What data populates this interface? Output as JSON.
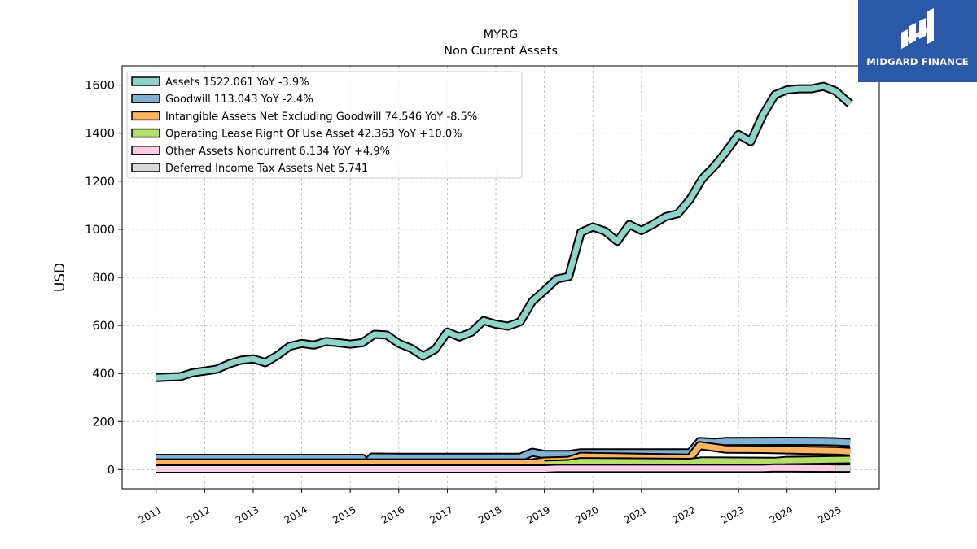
{
  "chart_data": {
    "type": "area",
    "title": "MYRG",
    "subtitle": "Non Current  Assets",
    "ylabel": "USD",
    "xlabel": "",
    "ylim": [
      -80,
      1680
    ],
    "xlim": [
      2010.3,
      2025.9
    ],
    "yticks": [
      0,
      200,
      400,
      600,
      800,
      1000,
      1200,
      1400,
      1600
    ],
    "xticks": [
      "2011",
      "2012",
      "2013",
      "2014",
      "2015",
      "2016",
      "2017",
      "2018",
      "2019",
      "2020",
      "2021",
      "2022",
      "2023",
      "2024",
      "2025"
    ],
    "grid": true,
    "legend_position": "top-left",
    "legend": [
      "Assets  1522.061 YoY -3.9%",
      "Goodwill  113.043 YoY -2.4%",
      "Intangible Assets Net Excluding Goodwill  74.546 YoY -8.5%",
      "Operating Lease Right Of Use Asset  42.363 YoY +10.0%",
      "Other Assets Noncurrent  6.134 YoY +4.9%",
      "Deferred Income Tax Assets Net  5.741"
    ],
    "series": [
      {
        "name": "Assets",
        "color": "#8dd3c7",
        "points": [
          [
            2011.0,
            383
          ],
          [
            2011.25,
            385
          ],
          [
            2011.5,
            387
          ],
          [
            2011.75,
            403
          ],
          [
            2012.0,
            410
          ],
          [
            2012.25,
            418
          ],
          [
            2012.5,
            440
          ],
          [
            2012.75,
            455
          ],
          [
            2013.0,
            461
          ],
          [
            2013.25,
            445
          ],
          [
            2013.5,
            475
          ],
          [
            2013.75,
            513
          ],
          [
            2014.0,
            525
          ],
          [
            2014.25,
            518
          ],
          [
            2014.5,
            533
          ],
          [
            2014.75,
            528
          ],
          [
            2015.0,
            522
          ],
          [
            2015.25,
            528
          ],
          [
            2015.5,
            563
          ],
          [
            2015.75,
            560
          ],
          [
            2016.0,
            525
          ],
          [
            2016.25,
            505
          ],
          [
            2016.5,
            472
          ],
          [
            2016.75,
            500
          ],
          [
            2017.0,
            573
          ],
          [
            2017.25,
            552
          ],
          [
            2017.5,
            572
          ],
          [
            2017.75,
            620
          ],
          [
            2018.0,
            605
          ],
          [
            2018.25,
            597
          ],
          [
            2018.5,
            615
          ],
          [
            2018.75,
            700
          ],
          [
            2019.0,
            745
          ],
          [
            2019.25,
            793
          ],
          [
            2019.5,
            803
          ],
          [
            2019.75,
            987
          ],
          [
            2020.0,
            1010
          ],
          [
            2020.25,
            992
          ],
          [
            2020.5,
            950
          ],
          [
            2020.75,
            1020
          ],
          [
            2021.0,
            995
          ],
          [
            2021.25,
            1022
          ],
          [
            2021.5,
            1053
          ],
          [
            2021.75,
            1065
          ],
          [
            2022.0,
            1125
          ],
          [
            2022.25,
            1210
          ],
          [
            2022.5,
            1262
          ],
          [
            2022.75,
            1325
          ],
          [
            2023.0,
            1395
          ],
          [
            2023.25,
            1365
          ],
          [
            2023.5,
            1475
          ],
          [
            2023.75,
            1560
          ],
          [
            2024.0,
            1580
          ],
          [
            2024.25,
            1585
          ],
          [
            2024.5,
            1585
          ],
          [
            2024.75,
            1595
          ],
          [
            2025.0,
            1575
          ],
          [
            2025.3,
            1522
          ]
        ]
      },
      {
        "name": "Goodwill",
        "color": "#80b1d3",
        "points": [
          [
            2011.0,
            47
          ],
          [
            2015.25,
            47
          ],
          [
            2015.3,
            20
          ],
          [
            2015.45,
            52
          ],
          [
            2016.0,
            51
          ],
          [
            2018.5,
            51
          ],
          [
            2018.75,
            72
          ],
          [
            2019.0,
            63
          ],
          [
            2019.5,
            63
          ],
          [
            2019.75,
            70
          ],
          [
            2022.0,
            70
          ],
          [
            2022.2,
            117
          ],
          [
            2022.5,
            114
          ],
          [
            2022.75,
            117
          ],
          [
            2024.0,
            118
          ],
          [
            2024.75,
            117
          ],
          [
            2025.0,
            116
          ],
          [
            2025.3,
            113
          ]
        ]
      },
      {
        "name": "Intangible Assets Net Excluding Goodwill",
        "color": "#fdb462",
        "points": [
          [
            2011.0,
            28
          ],
          [
            2018.75,
            28
          ],
          [
            2019.0,
            35
          ],
          [
            2019.5,
            38
          ],
          [
            2019.75,
            55
          ],
          [
            2022.0,
            48
          ],
          [
            2022.2,
            100
          ],
          [
            2022.5,
            92
          ],
          [
            2022.75,
            85
          ],
          [
            2023.5,
            84
          ],
          [
            2024.0,
            82
          ],
          [
            2025.0,
            78
          ],
          [
            2025.3,
            75
          ]
        ]
      },
      {
        "name": "Operating Lease Right Of Use Asset",
        "color": "#b3de69",
        "points": [
          [
            2019.0,
            22
          ],
          [
            2019.5,
            25
          ],
          [
            2019.75,
            33
          ],
          [
            2022.0,
            30
          ],
          [
            2022.25,
            36
          ],
          [
            2023.75,
            34
          ],
          [
            2024.0,
            38
          ],
          [
            2024.75,
            40
          ],
          [
            2025.3,
            42
          ]
        ]
      },
      {
        "name": "Other Assets Noncurrent",
        "color": "#fccde5",
        "points": [
          [
            2011.0,
            3
          ],
          [
            2019.0,
            3
          ],
          [
            2019.25,
            5
          ],
          [
            2023.5,
            5
          ],
          [
            2023.75,
            7
          ],
          [
            2025.0,
            6
          ],
          [
            2025.3,
            6
          ]
        ]
      },
      {
        "name": "Deferred Income Tax Assets Net",
        "color": "#d9d9d9",
        "points": [
          [
            2025.0,
            6
          ],
          [
            2025.3,
            6
          ]
        ]
      }
    ]
  },
  "logo": {
    "text": "MIDGARD FINANCE",
    "background": "#2b59a8"
  }
}
